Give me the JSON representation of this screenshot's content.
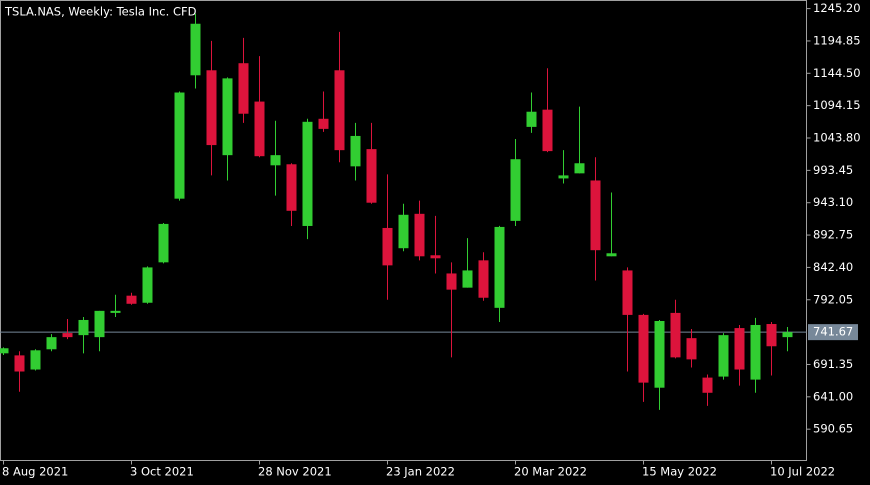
{
  "chart_data": {
    "type": "candlestick",
    "title": "TSLA.NAS, Weekly:  Tesla Inc. CFD",
    "categories": [
      "8 Aug 2021",
      null,
      null,
      null,
      null,
      null,
      null,
      null,
      "3 Oct 2021",
      null,
      null,
      null,
      null,
      null,
      null,
      null,
      "28 Nov 2021",
      null,
      null,
      null,
      null,
      null,
      null,
      null,
      "23 Jan 2022",
      null,
      null,
      null,
      null,
      null,
      null,
      null,
      "20 Mar 2022",
      null,
      null,
      null,
      null,
      null,
      null,
      null,
      "15 May 2022",
      null,
      null,
      null,
      null,
      null,
      null,
      null,
      "10 Jul 2022",
      null
    ],
    "open": [
      708.7,
      705.5,
      683.5,
      715.0,
      740.2,
      737.0,
      733.9,
      771.6,
      798.4,
      787.4,
      850.3,
      949.4,
      1141.4,
      1149.2,
      1017.1,
      1160.2,
      1100.5,
      1001.3,
      1002.9,
      906.9,
      1073.7,
      1149.2,
      999.7,
      1026.5,
      903.8,
      872.3,
      925.8,
      861.3,
      833.0,
      810.9,
      853.4,
      779.5,
      914.8,
      1061.1,
      1087.9,
      980.9,
      988.8,
      977.7,
      859.7,
      837.7,
      768.5,
      655.2,
      771.6,
      732.3,
      670.9,
      672.5,
      748.0,
      667.8,
      754.3,
      733.9
    ],
    "high": [
      718.0,
      711.9,
      715.0,
      738.6,
      762.2,
      765.3,
      774.8,
      799.9,
      803.0,
      844.0,
      911.6,
      1116.2,
      1237.3,
      1194.9,
      1138.2,
      1199.6,
      1171.3,
      1070.6,
      1004.5,
      1073.7,
      1116.2,
      1209.0,
      1067.4,
      1067.4,
      987.2,
      941.5,
      946.3,
      922.7,
      850.3,
      888.0,
      866.0,
      907.0,
      1042.2,
      1114.6,
      1152.4,
      1024.9,
      1092.6,
      1013.9,
      958.9,
      842.4,
      770.1,
      760.6,
      792.1,
      746.5,
      675.7,
      740.2,
      752.8,
      763.8,
      757.5,
      749.6
    ],
    "low": [
      706.0,
      648.9,
      682.0,
      711.9,
      730.7,
      708.7,
      711.9,
      765.3,
      784.2,
      785.8,
      848.7,
      946.3,
      1120.9,
      985.6,
      977.7,
      1067.4,
      1013.9,
      954.1,
      906.9,
      886.5,
      1053.3,
      1006.0,
      977.7,
      941.5,
      792.1,
      867.6,
      853.4,
      833.0,
      702.4,
      810.9,
      790.5,
      757.5,
      906.9,
      1051.7,
      1021.8,
      973.0,
      988.8,
      822.0,
      859.7,
      680.4,
      633.2,
      620.6,
      700.8,
      686.7,
      626.9,
      667.8,
      658.4,
      647.3,
      674.1,
      712.0
    ],
    "close": [
      716.6,
      680.4,
      713.4,
      733.9,
      733.9,
      760.6,
      774.8,
      774.8,
      785.8,
      842.4,
      910.1,
      1114.6,
      1221.6,
      1032.8,
      1136.6,
      1081.6,
      1015.5,
      1017.1,
      930.5,
      1069.0,
      1058.0,
      1024.9,
      1047.0,
      943.1,
      845.6,
      924.3,
      859.7,
      856.6,
      807.8,
      837.7,
      795.2,
      905.4,
      1010.8,
      1084.7,
      1023.4,
      985.6,
      1004.5,
      869.2,
      864.4,
      768.5,
      663.1,
      759.0,
      702.4,
      699.3,
      647.3,
      737.0,
      683.5,
      752.8,
      719.7,
      741.67
    ],
    "up_color": "#32cd32",
    "down_color": "#dc143c",
    "ylim": [
      541.9,
      1257.8
    ],
    "yticks": [
      {
        "value": 1245.2,
        "label": "1245.20"
      },
      1194.85,
      {
        "value": 1144.5,
        "label": "1144.50"
      },
      1094.15,
      {
        "value": 1043.8,
        "label": "1043.80"
      },
      993.45,
      {
        "value": 943.1,
        "label": "943.10"
      },
      892.75,
      {
        "value": 842.4,
        "label": "842.40"
      },
      792.05,
      691.35,
      {
        "value": 641.0,
        "label": "641.00"
      },
      590.65
    ],
    "current_price": 741.67,
    "grid": false
  }
}
